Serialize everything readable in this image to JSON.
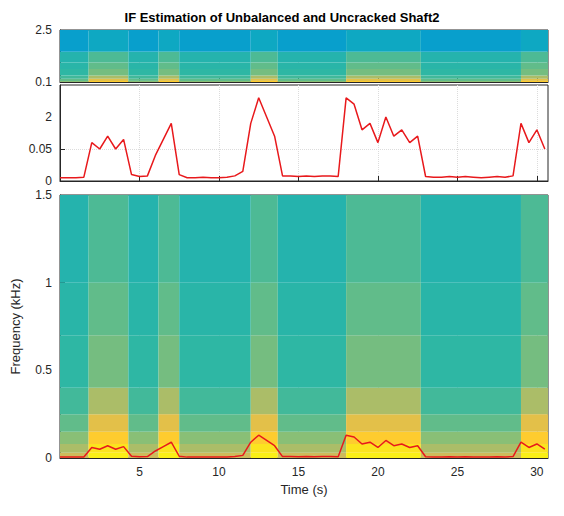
{
  "chart_data": {
    "type": "spectrogram",
    "title": "IF Estimation of Unbalanced and Uncracked Shaft2",
    "xlabel": "Time (s)",
    "ylabel": "Frequency (kHz)",
    "xlim": [
      0,
      30.7
    ],
    "xticks": [
      5,
      10,
      15,
      20,
      25,
      30
    ],
    "grid": true,
    "annotations": [
      "2"
    ],
    "panels": [
      {
        "ylim": [
          0.1,
          2.5
        ],
        "yticks": [
          0.1,
          2.5
        ]
      },
      {
        "ylim": [
          0,
          0.15
        ],
        "yticks": [
          0,
          0.05
        ]
      },
      {
        "ylim": [
          0,
          1.5
        ],
        "yticks": [
          0,
          0.5,
          1,
          1.5
        ]
      }
    ],
    "x": [
      0,
      0.5,
      1,
      1.5,
      2,
      2.5,
      3,
      3.5,
      4,
      4.5,
      5,
      5.5,
      6,
      6.5,
      7,
      7.5,
      8,
      8.5,
      9,
      9.5,
      10,
      10.5,
      11,
      11.5,
      12,
      12.5,
      13,
      13.5,
      14,
      14.5,
      15,
      15.5,
      16,
      16.5,
      17,
      17.5,
      18,
      18.5,
      19,
      19.5,
      20,
      20.5,
      21,
      21.5,
      22,
      22.5,
      23,
      23.5,
      24,
      24.5,
      25,
      25.5,
      26,
      26.5,
      27,
      27.5,
      28,
      28.5,
      29,
      29.5,
      30,
      30.5
    ],
    "values": [
      0.005,
      0.005,
      0.005,
      0.006,
      0.06,
      0.05,
      0.07,
      0.05,
      0.065,
      0.01,
      0.007,
      0.008,
      0.04,
      0.065,
      0.09,
      0.01,
      0.005,
      0.005,
      0.006,
      0.005,
      0.005,
      0.006,
      0.008,
      0.015,
      0.09,
      0.13,
      0.1,
      0.07,
      0.008,
      0.008,
      0.007,
      0.008,
      0.007,
      0.008,
      0.008,
      0.007,
      0.13,
      0.12,
      0.08,
      0.09,
      0.06,
      0.1,
      0.07,
      0.08,
      0.06,
      0.07,
      0.007,
      0.006,
      0.006,
      0.007,
      0.006,
      0.007,
      0.006,
      0.005,
      0.006,
      0.007,
      0.006,
      0.008,
      0.09,
      0.06,
      0.08,
      0.05
    ],
    "color": "#e8191c",
    "spectrogram": {
      "time_edges": [
        0,
        1.8,
        4.3,
        6.2,
        7.5,
        12,
        13.7,
        18,
        22.7,
        29,
        30.7
      ],
      "freq_edges": [
        0,
        0.03,
        0.08,
        0.15,
        0.25,
        0.4,
        0.7,
        1,
        1.5,
        2.5
      ],
      "clim": [
        -80,
        -10
      ],
      "values": [
        [
          -28,
          -32,
          -36,
          -40,
          -43,
          -45,
          -46,
          -47,
          -55
        ],
        [
          -12,
          -14,
          -18,
          -24,
          -32,
          -38,
          -40,
          -42,
          -52
        ],
        [
          -28,
          -32,
          -36,
          -40,
          -43,
          -45,
          -46,
          -47,
          -55
        ],
        [
          -12,
          -14,
          -18,
          -24,
          -32,
          -38,
          -40,
          -42,
          -52
        ],
        [
          -28,
          -32,
          -36,
          -40,
          -43,
          -45,
          -46,
          -47,
          -55
        ],
        [
          -12,
          -14,
          -18,
          -24,
          -32,
          -38,
          -40,
          -42,
          -52
        ],
        [
          -28,
          -32,
          -36,
          -40,
          -43,
          -45,
          -46,
          -47,
          -55
        ],
        [
          -12,
          -14,
          -18,
          -24,
          -32,
          -38,
          -40,
          -42,
          -52
        ],
        [
          -28,
          -32,
          -36,
          -40,
          -43,
          -45,
          -46,
          -47,
          -55
        ],
        [
          -12,
          -14,
          -18,
          -24,
          -32,
          -38,
          -40,
          -42,
          -52
        ]
      ]
    }
  }
}
